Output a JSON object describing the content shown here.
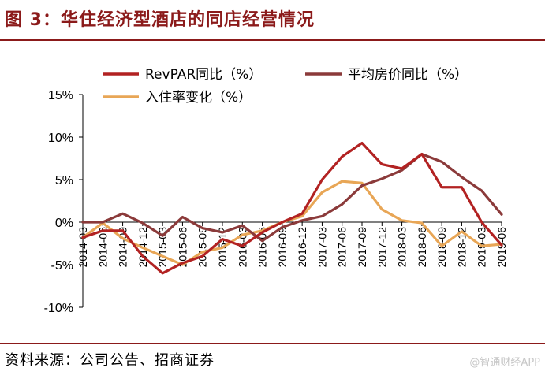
{
  "title": "图 3：华住经济型酒店的同店经营情况",
  "source": "资料来源：公司公告、招商证券",
  "watermark": "@智通财经APP",
  "colors": {
    "title": "#8b1a1a",
    "revpar": "#b22222",
    "adr": "#8b3a3a",
    "occupancy": "#e8a656"
  },
  "chart_data": {
    "type": "line",
    "title": "",
    "xlabel": "",
    "ylabel": "",
    "ylim": [
      -10,
      15
    ],
    "yticks": [
      -10,
      -5,
      0,
      5,
      10,
      15
    ],
    "ytick_labels": [
      "-10%",
      "-5%",
      "0%",
      "5%",
      "10%",
      "15%"
    ],
    "grid": false,
    "legend_position": "top",
    "categories": [
      "2014-03",
      "2014-06",
      "2014-09",
      "2014-12",
      "2015-03",
      "2015-06",
      "2015-09",
      "2015-12",
      "2016-03",
      "2016-06",
      "2016-09",
      "2016-12",
      "2017-03",
      "2017-06",
      "2017-09",
      "2017-12",
      "2018-03",
      "2018-06",
      "2018-09",
      "2018-12",
      "2019-03",
      "2019-06"
    ],
    "series": [
      {
        "name": "RevPAR同比（%）",
        "color": "#b22222",
        "values": [
          -1.8,
          -1.0,
          -1.0,
          -4.0,
          -6.0,
          -4.8,
          -4.0,
          -2.0,
          -2.8,
          -1.2,
          0.0,
          1.0,
          5.0,
          7.7,
          9.3,
          6.8,
          6.3,
          8.0,
          4.1,
          4.1,
          0.0,
          -2.7
        ]
      },
      {
        "name": "平均房价同比（%）",
        "color": "#8b3a3a",
        "values": [
          0.0,
          0.0,
          1.0,
          -0.1,
          -1.6,
          0.6,
          -0.7,
          -1.2,
          -0.4,
          -2.2,
          -0.6,
          0.2,
          0.7,
          2.1,
          4.3,
          5.1,
          6.1,
          8.0,
          7.1,
          5.3,
          3.7,
          0.9
        ]
      },
      {
        "name": "入住率变化（%）",
        "color": "#e8a656",
        "values": [
          -1.8,
          -0.1,
          -1.9,
          -3.0,
          -4.0,
          -5.0,
          -3.5,
          -3.0,
          -1.5,
          -1.0,
          0.0,
          0.7,
          3.5,
          4.8,
          4.6,
          1.5,
          0.2,
          -0.1,
          -2.8,
          -1.1,
          -2.8,
          -2.6
        ]
      }
    ]
  }
}
